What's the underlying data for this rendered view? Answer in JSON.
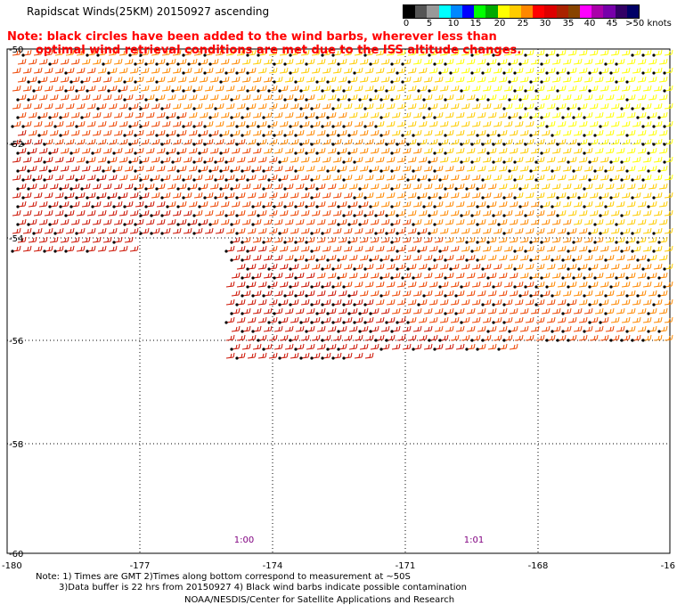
{
  "title": "Rapidscat Winds(25KM) 20150927 ascending",
  "note_line1": "Note: black circles have been added to the wind barbs, wherever less than",
  "note_line2": "optimal wind retrieval conditions are met due to the ISS altitude changes.",
  "colorbar": {
    "colors": [
      "#000000",
      "#555555",
      "#999999",
      "#00ffff",
      "#0088ff",
      "#0000ff",
      "#00ff00",
      "#00aa00",
      "#ffff00",
      "#ffcc00",
      "#ff8800",
      "#ff0000",
      "#dd0000",
      "#aa2200",
      "#884400",
      "#ff00ff",
      "#aa00aa",
      "#7700aa",
      "#330066",
      "#000066"
    ],
    "ticks": [
      "0",
      "5",
      "10",
      "15",
      "20",
      "25",
      "30",
      "35",
      "40",
      "45",
      ">50 knots"
    ]
  },
  "axes": {
    "y_labels": [
      "-50",
      "-52",
      "-54",
      "-56",
      "-58",
      "-60"
    ],
    "x_labels": [
      "-180",
      "-177",
      "-174",
      "-171",
      "-168",
      "-16"
    ]
  },
  "time_labels": [
    "1:00",
    "1:01"
  ],
  "footer_line1": "Note: 1) Times are GMT 2)Times along bottom correspond to measurement at ~50S",
  "footer_line2": "3)Data buffer is 22 hrs from 20150927 4) Black wind barbs indicate possible contamination",
  "credit": "NOAA/NESDIS/Center for Satellite Applications and Research"
}
